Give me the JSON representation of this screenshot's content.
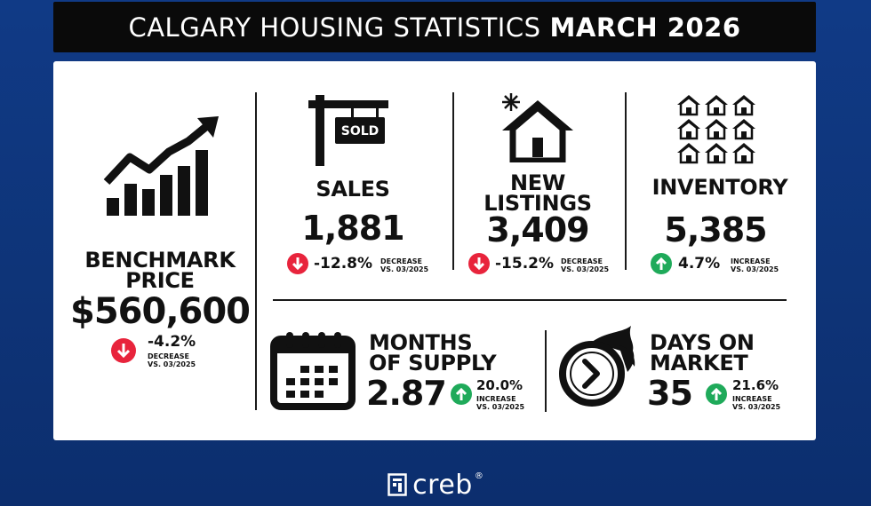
{
  "header": {
    "title_regular": "CALGARY HOUSING STATISTICS",
    "title_bold": "MARCH 2026"
  },
  "benchmark": {
    "label_line1": "BENCHMARK",
    "label_line2": "PRICE",
    "value": "$560,600",
    "change": "-4.2%",
    "direction": "down",
    "note_line1": "DECREASE",
    "note_line2": "VS. 03/2025",
    "icon": "chart-up-icon"
  },
  "sales": {
    "label": "SALES",
    "sign_text": "SOLD",
    "value": "1,881",
    "change": "-12.8%",
    "direction": "down",
    "note_line1": "DECREASE",
    "note_line2": "VS. 03/2025",
    "icon": "sold-sign-icon"
  },
  "new_listings": {
    "label_line1": "NEW",
    "label_line2": "LISTINGS",
    "value": "3,409",
    "change": "-15.2%",
    "direction": "down",
    "note_line1": "DECREASE",
    "note_line2": "VS. 03/2025",
    "icon": "house-icon"
  },
  "inventory": {
    "label": "INVENTORY",
    "value": "5,385",
    "change": "4.7%",
    "direction": "up",
    "note_line1": "INCREASE",
    "note_line2": "VS. 03/2025",
    "icon": "houses-grid-icon"
  },
  "months_supply": {
    "label_line1": "MONTHS",
    "label_line2": "OF SUPPLY",
    "value": "2.87",
    "change": "20.0%",
    "direction": "up",
    "note_line1": "INCREASE",
    "note_line2": "VS. 03/2025",
    "icon": "calendar-icon"
  },
  "days_on_market": {
    "label_line1": "DAYS ON",
    "label_line2": "MARKET",
    "value": "35",
    "change": "21.6%",
    "direction": "up",
    "note_line1": "INCREASE",
    "note_line2": "VS. 03/2025",
    "icon": "fast-clock-icon"
  },
  "footer": {
    "brand": "creb",
    "registered": "®",
    "icon": "creb-logo-icon"
  },
  "colors": {
    "background": "#103a86",
    "decrease": "#e8243c",
    "increase": "#1faa5a",
    "title_bar": "#0a0a0a"
  }
}
